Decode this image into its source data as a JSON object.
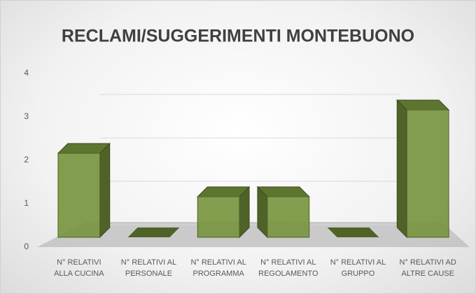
{
  "chart_data": {
    "type": "bar3d",
    "title": "RECLAMI/SUGGERIMENTI MONTEBUONO",
    "categories": [
      "N° RELATIVI ALLA CUCINA",
      "N° RELATIVI AL PERSONALE",
      "N° RELATIVI AL PROGRAMMA",
      "N° RELATIVI AL REGOLAMENTO",
      "N° RELATIVI AL GRUPPO",
      "N° RELATIVI AD ALTRE CAUSE"
    ],
    "values": [
      2,
      0,
      1,
      1,
      0,
      3
    ],
    "color": "#77933c",
    "ylim": [
      0,
      4
    ],
    "yticks": [
      0,
      1,
      2,
      3,
      4
    ],
    "grid": true
  }
}
